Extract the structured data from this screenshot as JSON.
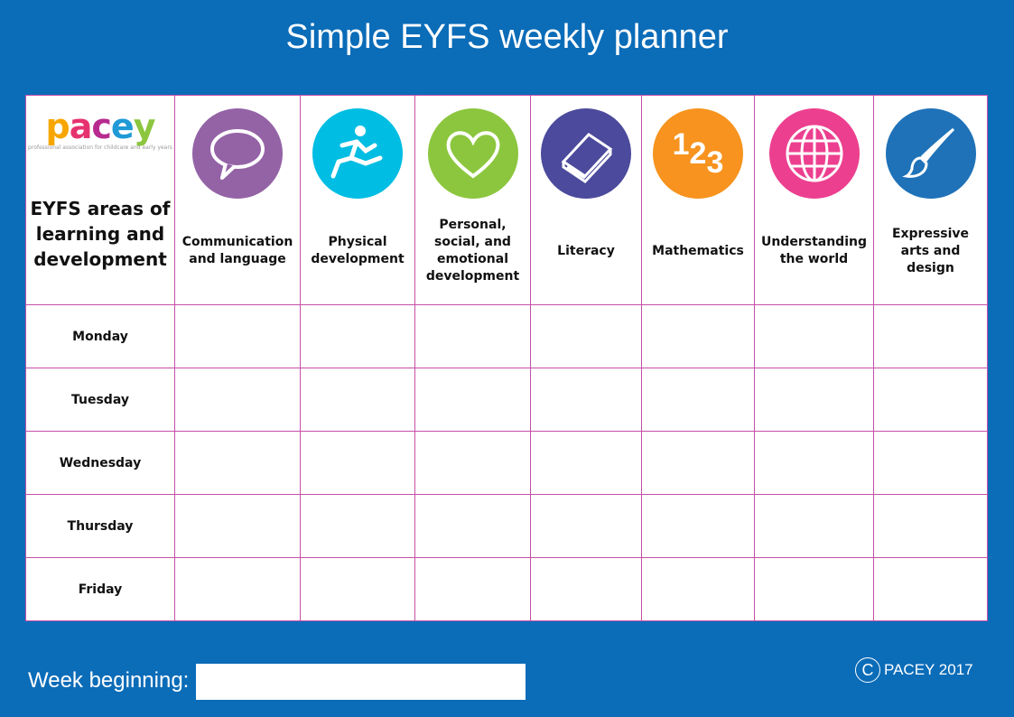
{
  "title": "Simple EYFS weekly planner",
  "logo": {
    "text": "pacey",
    "tagline": "professional association for childcare and early years",
    "letter_colors": [
      "#f7a600",
      "#e6336f",
      "#b72b8f",
      "#1f9ad6",
      "#8cc63e"
    ]
  },
  "corner_heading": "EYFS areas of learning and development",
  "areas": [
    {
      "label": "Communication and language",
      "icon": "speech-bubble-icon",
      "color": "#9463a6"
    },
    {
      "label": "Physical development",
      "icon": "running-person-icon",
      "color": "#00bde3"
    },
    {
      "label": "Personal, social, and emotional development",
      "icon": "heart-icon",
      "color": "#8cc63e"
    },
    {
      "label": "Literacy",
      "icon": "book-icon",
      "color": "#4c4a9c"
    },
    {
      "label": "Mathematics",
      "icon": "numbers-123-icon",
      "color": "#f7931e"
    },
    {
      "label": "Understanding the world",
      "icon": "globe-icon",
      "color": "#ec3f8f"
    },
    {
      "label": "Expressive arts and design",
      "icon": "paintbrush-icon",
      "color": "#1f72b8"
    }
  ],
  "days": [
    "Monday",
    "Tuesday",
    "Wednesday",
    "Thursday",
    "Friday"
  ],
  "footer": {
    "week_label": "Week beginning:",
    "week_value": "",
    "copyright_symbol": "C",
    "copyright": "PACEY 2017"
  },
  "colors": {
    "background": "#0b6cb8",
    "grid_border": "#c64fa8"
  }
}
